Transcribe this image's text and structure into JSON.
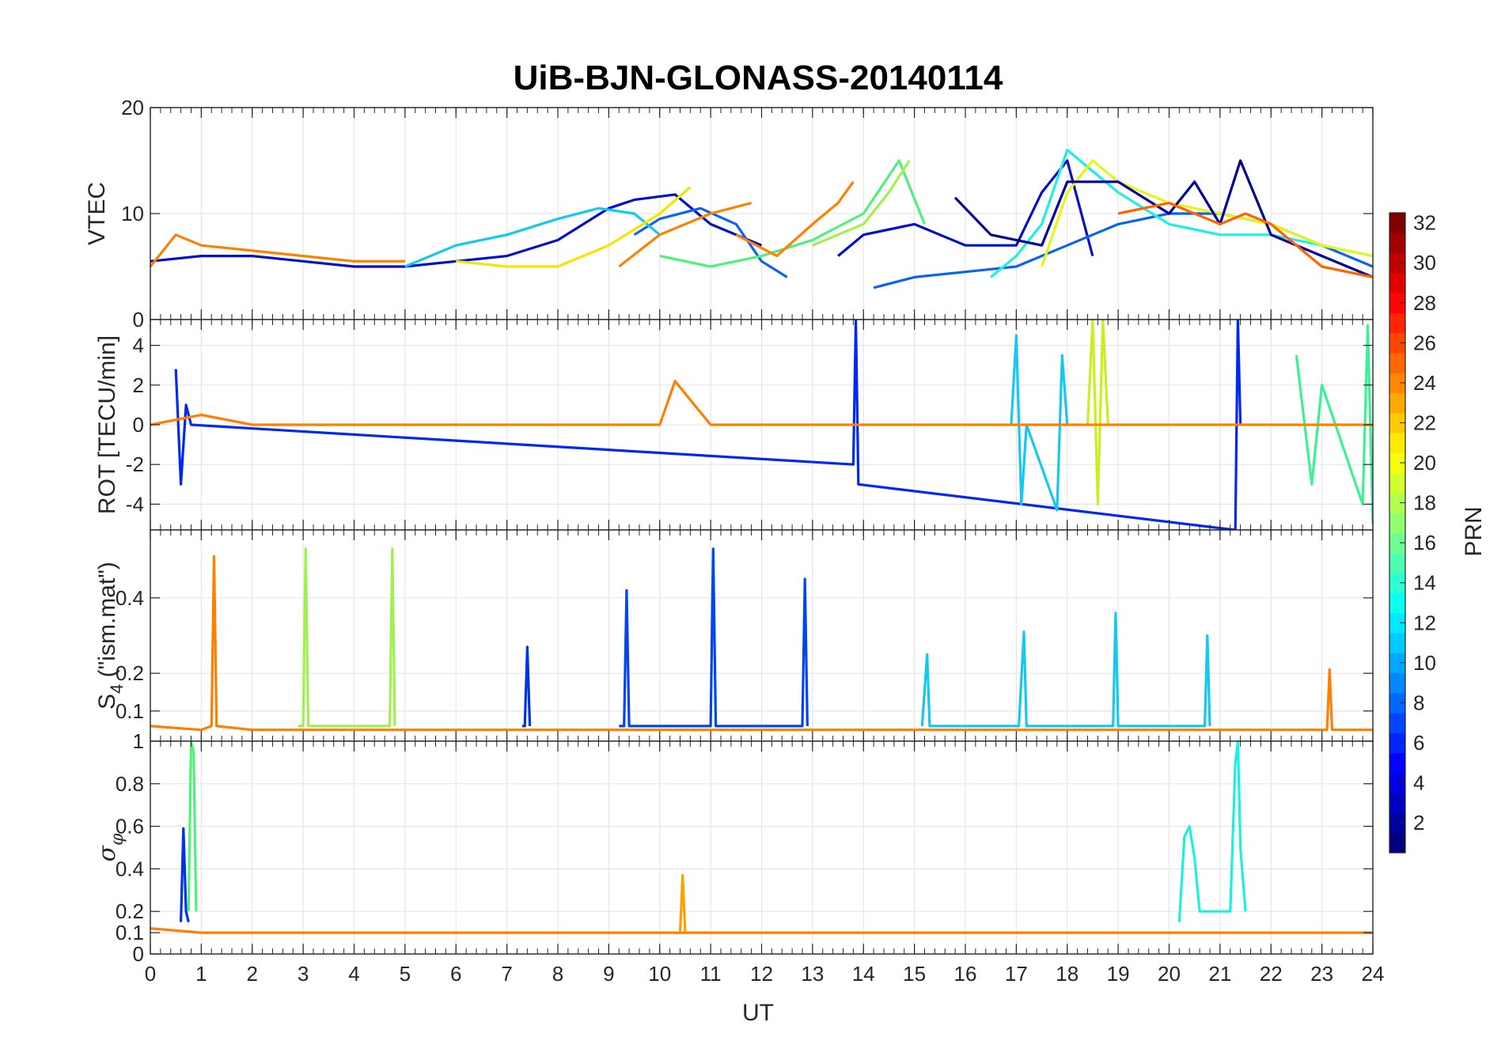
{
  "chart_data": {
    "type": "line",
    "title": "UiB-BJN-GLONASS-20140114",
    "xlabel": "UT",
    "xlim": [
      0,
      24
    ],
    "xticks": [
      0,
      1,
      2,
      3,
      4,
      5,
      6,
      7,
      8,
      9,
      10,
      11,
      12,
      13,
      14,
      15,
      16,
      17,
      18,
      19,
      20,
      21,
      22,
      23,
      24
    ],
    "colorbar": {
      "label": "PRN",
      "colormap": "jet",
      "range": [
        1,
        32
      ],
      "ticks": [
        2,
        4,
        6,
        8,
        10,
        12,
        14,
        16,
        18,
        20,
        22,
        24,
        26,
        28,
        30,
        32
      ]
    },
    "grid": true,
    "panels": [
      {
        "name": "vtec",
        "ylabel": "VTEC",
        "ylim": [
          0,
          20
        ],
        "yticks": [
          0,
          10,
          20
        ],
        "yticklabels": [
          "0",
          "10",
          "20"
        ],
        "series": [
          {
            "prn": 2,
            "color": "#0010c8",
            "x": [
              0.0,
              1,
              2,
              3,
              4,
              5,
              6,
              7,
              8,
              9,
              9.5,
              10.3,
              11,
              12
            ],
            "y": [
              5.5,
              6,
              6,
              5.5,
              5,
              5,
              5.5,
              6,
              7.5,
              10.5,
              11.3,
              11.8,
              9,
              7
            ]
          },
          {
            "prn": 9,
            "color": "#0a64f0",
            "x": [
              9.5,
              10,
              10.8,
              11.5,
              12,
              12.5
            ],
            "y": [
              8,
              9.5,
              10.5,
              9,
              5.5,
              4
            ]
          },
          {
            "prn": 12,
            "color": "#14c8f0",
            "x": [
              5,
              6,
              7,
              8,
              8.8,
              9.5,
              10
            ],
            "y": [
              5,
              7,
              8,
              9.5,
              10.5,
              10,
              8
            ]
          },
          {
            "prn": 16,
            "color": "#50f07a",
            "x": [
              10,
              11,
              12,
              13,
              14,
              14.7,
              15.2
            ],
            "y": [
              6,
              5,
              6,
              7.5,
              10,
              15,
              9
            ]
          },
          {
            "prn": 17,
            "color": "#a0f050",
            "x": [
              13,
              14,
              14.5,
              14.9
            ],
            "y": [
              7,
              9,
              12,
              15
            ]
          },
          {
            "prn": 20,
            "color": "#f5e600",
            "x": [
              6,
              7,
              8,
              9,
              10,
              10.6
            ],
            "y": [
              5.5,
              5,
              5,
              7,
              10,
              12.5
            ]
          },
          {
            "prn": 23,
            "color": "#ff8000",
            "x": [
              0,
              0.5,
              1,
              2,
              3,
              4,
              5
            ],
            "y": [
              5,
              8,
              7,
              6.5,
              6,
              5.5,
              5.5
            ]
          },
          {
            "prn": 23,
            "color": "#ff8000",
            "x": [
              9.2,
              10,
              11,
              11.8
            ],
            "y": [
              5,
              8,
              10,
              11
            ]
          },
          {
            "prn": 23,
            "color": "#ff8000",
            "x": [
              11.5,
              12.3,
              13,
              13.5,
              13.8
            ],
            "y": [
              8,
              6,
              9,
              11,
              13
            ]
          },
          {
            "prn": 2,
            "color": "#0010c8",
            "x": [
              13.5,
              14,
              15,
              16,
              17,
              17.5,
              18,
              18.5
            ],
            "y": [
              6,
              8,
              9,
              7,
              7,
              12,
              15,
              6
            ]
          },
          {
            "prn": 9,
            "color": "#0a64f0",
            "x": [
              14.2,
              15,
              16,
              17,
              18,
              19,
              20,
              21,
              22,
              23,
              24
            ],
            "y": [
              3,
              4,
              4.5,
              5,
              7,
              9,
              10,
              10,
              9,
              7,
              5
            ]
          },
          {
            "prn": 13,
            "color": "#1ef0e0",
            "x": [
              16.5,
              17,
              17.5,
              18,
              18.5,
              19,
              20,
              21,
              22,
              23,
              24
            ],
            "y": [
              4,
              6,
              9,
              16,
              14,
              12,
              9,
              8,
              8,
              7,
              6
            ]
          },
          {
            "prn": 19,
            "color": "#e6f514",
            "x": [
              17.5,
              18,
              18.5,
              19,
              20,
              21,
              22,
              23,
              24
            ],
            "y": [
              5,
              12,
              15,
              13,
              11,
              10,
              9,
              7,
              6
            ]
          },
          {
            "prn": 1,
            "color": "#000098",
            "x": [
              15.8,
              16.5,
              17.5,
              18,
              19,
              20,
              20.5,
              21,
              21.4,
              22,
              23,
              24
            ],
            "y": [
              11.5,
              8,
              7,
              13,
              13,
              10,
              13,
              9,
              15,
              8,
              6,
              4
            ]
          },
          {
            "prn": 24,
            "color": "#ff6400",
            "x": [
              19,
              20,
              21,
              21.5,
              22,
              23,
              24
            ],
            "y": [
              10,
              11,
              9,
              10,
              9,
              5,
              4
            ]
          }
        ]
      },
      {
        "name": "rot",
        "ylabel": "ROT [TECU/min]",
        "ylim": [
          -5.3,
          5.3
        ],
        "yticks": [
          -4,
          -2,
          0,
          2,
          4
        ],
        "yticklabels": [
          "-4",
          "-2",
          "0",
          "2",
          "4"
        ],
        "series": [
          {
            "prn": 3,
            "color": "#0028f0",
            "x": [
              0.5,
              0.6,
              0.7,
              0.8,
              13.8,
              13.85,
              13.9,
              21.3,
              21.35,
              21.4
            ],
            "y": [
              2.8,
              -3,
              1,
              0,
              -2,
              5.3,
              -3,
              -5.3,
              5.3,
              0
            ]
          },
          {
            "prn": 12,
            "color": "#14c8f0",
            "x": [
              16.9,
              17,
              17.1,
              17.2,
              17.8,
              17.9,
              18
            ],
            "y": [
              0,
              4.5,
              -4,
              0,
              -4.3,
              3.5,
              0
            ]
          },
          {
            "prn": 18,
            "color": "#c8f01e",
            "x": [
              18.4,
              18.5,
              18.6,
              18.7,
              18.8
            ],
            "y": [
              0,
              5.3,
              -4,
              5.3,
              0
            ]
          },
          {
            "prn": 15,
            "color": "#3cf096",
            "x": [
              22.5,
              22.8,
              23,
              23.8,
              23.9,
              24
            ],
            "y": [
              3.5,
              -3,
              2,
              -4,
              5,
              -5
            ]
          },
          {
            "prn": 23,
            "color": "#ff8000",
            "x": [
              0.0,
              1,
              2,
              3,
              4,
              5,
              6,
              7,
              8,
              9,
              10,
              10.3,
              11,
              12,
              13,
              14,
              15,
              16,
              17,
              18,
              19,
              20,
              21,
              22,
              23,
              24
            ],
            "y": [
              0,
              0.5,
              0,
              0,
              0,
              0,
              0,
              0,
              0,
              0,
              0,
              2.2,
              0,
              0,
              0,
              0,
              0,
              0,
              0,
              0,
              0,
              0,
              0,
              0,
              0,
              0
            ]
          }
        ]
      },
      {
        "name": "s4",
        "ylabel": "S4 (\"ism.mat\")",
        "ylim": [
          0.02,
          0.58
        ],
        "yticks": [
          0.1,
          0.2,
          0.4
        ],
        "yticklabels": [
          "0.1",
          "0.2",
          "0.4"
        ],
        "series": [
          {
            "prn": 23,
            "color": "#ff8000",
            "x": [
              0,
              1.0,
              1.2,
              1.25,
              1.3,
              2,
              3,
              4,
              5,
              6,
              7,
              8,
              9,
              10,
              11,
              12,
              13,
              14,
              15,
              16,
              17,
              18,
              19,
              20,
              21,
              22,
              23,
              23.1,
              23.15,
              23.2,
              24
            ],
            "y": [
              0.06,
              0.05,
              0.06,
              0.51,
              0.06,
              0.05,
              0.05,
              0.05,
              0.05,
              0.05,
              0.05,
              0.05,
              0.05,
              0.05,
              0.05,
              0.05,
              0.05,
              0.05,
              0.05,
              0.05,
              0.05,
              0.05,
              0.05,
              0.05,
              0.05,
              0.05,
              0.05,
              0.05,
              0.21,
              0.05,
              0.05
            ]
          },
          {
            "prn": 17,
            "color": "#a0f050",
            "x": [
              2.9,
              3.0,
              3.05,
              3.1,
              4.6,
              4.7,
              4.75,
              4.8
            ],
            "y": [
              0.06,
              0.06,
              0.53,
              0.06,
              0.06,
              0.06,
              0.53,
              0.06
            ]
          },
          {
            "prn": 6,
            "color": "#0046f0",
            "x": [
              9.2,
              9.3,
              9.35,
              9.4,
              10.9,
              11.0,
              11.05,
              11.1,
              12.7,
              12.8,
              12.85,
              12.9
            ],
            "y": [
              0.06,
              0.06,
              0.42,
              0.06,
              0.06,
              0.06,
              0.53,
              0.06,
              0.06,
              0.06,
              0.45,
              0.06
            ]
          },
          {
            "prn": 5,
            "color": "#0032e6",
            "x": [
              7.3,
              7.35,
              7.4,
              7.45
            ],
            "y": [
              0.06,
              0.06,
              0.27,
              0.06
            ]
          },
          {
            "prn": 12,
            "color": "#14c8f0",
            "x": [
              15.15,
              15.25,
              15.3,
              17.05,
              17.15,
              17.2,
              18.9,
              18.95,
              19.0,
              20.7,
              20.75,
              20.8
            ],
            "y": [
              0.06,
              0.25,
              0.06,
              0.06,
              0.31,
              0.06,
              0.06,
              0.36,
              0.06,
              0.06,
              0.3,
              0.06
            ]
          }
        ]
      },
      {
        "name": "sigma-phi",
        "ylabel": "σφ",
        "ylim": [
          0,
          1
        ],
        "yticks": [
          0,
          0.1,
          0.2,
          0.4,
          0.6,
          0.8,
          1
        ],
        "yticklabels": [
          "0",
          "0.1",
          "0.2",
          "0.4",
          "0.6",
          "0.8",
          "1"
        ],
        "series": [
          {
            "prn": 4,
            "color": "#0032e6",
            "x": [
              0.6,
              0.65,
              0.7,
              0.75
            ],
            "y": [
              0.15,
              0.59,
              0.2,
              0.15
            ]
          },
          {
            "prn": 16,
            "color": "#50f07a",
            "x": [
              0.75,
              0.8,
              0.85,
              0.9
            ],
            "y": [
              0.2,
              1,
              0.95,
              0.2
            ]
          },
          {
            "prn": 13,
            "color": "#1ef0e0",
            "x": [
              20.2,
              20.3,
              20.4,
              20.5,
              20.6,
              21.2,
              21.3,
              21.35,
              21.4,
              21.5
            ],
            "y": [
              0.15,
              0.55,
              0.6,
              0.45,
              0.2,
              0.2,
              0.9,
              1,
              0.5,
              0.2
            ]
          },
          {
            "prn": 22,
            "color": "#ffa000",
            "x": [
              10.3,
              10.4,
              10.45,
              10.5
            ],
            "y": [
              0.1,
              0.1,
              0.37,
              0.1
            ]
          },
          {
            "prn": 23,
            "color": "#ff8000",
            "x": [
              0,
              1,
              2,
              3,
              4,
              5,
              6,
              7,
              8,
              9,
              10,
              11,
              12,
              13,
              14,
              15,
              16,
              17,
              18,
              19,
              20,
              21,
              22,
              23,
              24
            ],
            "y": [
              0.12,
              0.1,
              0.1,
              0.1,
              0.1,
              0.1,
              0.1,
              0.1,
              0.1,
              0.1,
              0.1,
              0.1,
              0.1,
              0.1,
              0.1,
              0.1,
              0.1,
              0.1,
              0.1,
              0.1,
              0.1,
              0.1,
              0.1,
              0.1,
              0.1
            ]
          }
        ]
      }
    ]
  }
}
